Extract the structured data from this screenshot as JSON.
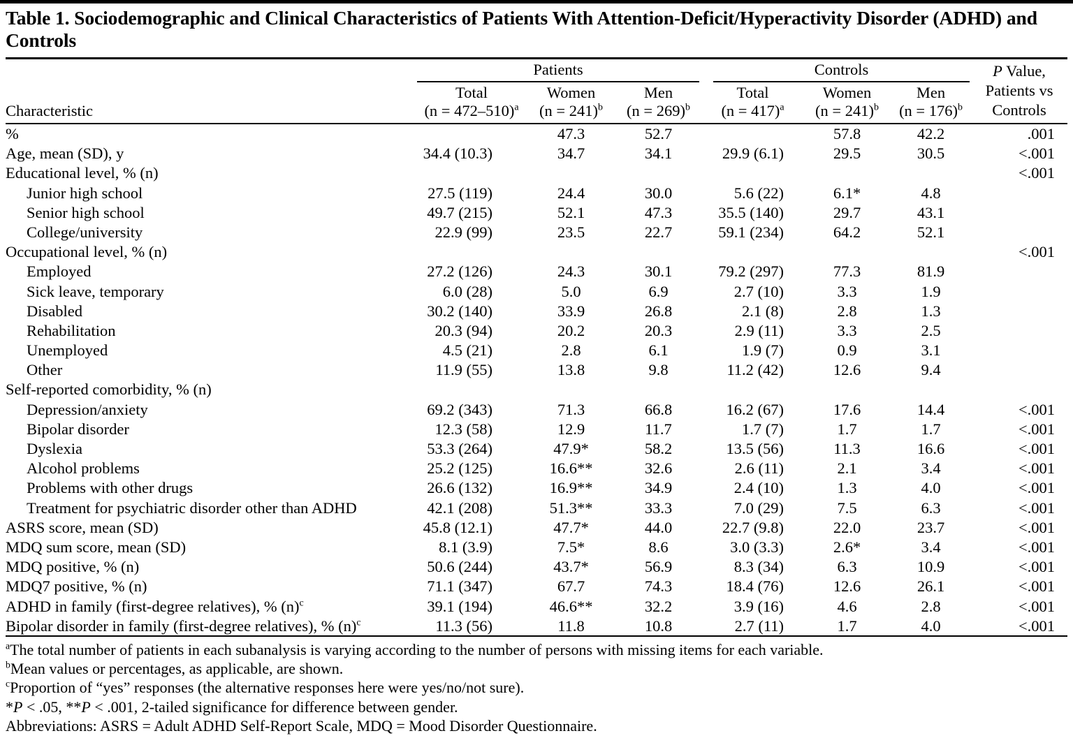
{
  "title": "Table 1. Sociodemographic and Clinical Characteristics of Patients With Attention-Deficit/Hyperactivity Disorder (ADHD) and Controls",
  "table": {
    "characteristic_header": "Characteristic",
    "patients_group": {
      "label": "Patients",
      "columns": [
        {
          "line1": "Total",
          "line2": "(n = 472–510)",
          "sup": "a"
        },
        {
          "line1": "Women",
          "line2": "(n = 241)",
          "sup": "b"
        },
        {
          "line1": "Men",
          "line2": "(n = 269)",
          "sup": "b"
        }
      ]
    },
    "controls_group": {
      "label": "Controls",
      "columns": [
        {
          "line1": "Total",
          "line2": "(n = 417)",
          "sup": "a"
        },
        {
          "line1": "Women",
          "line2": "(n = 241)",
          "sup": "b"
        },
        {
          "line1": "Men",
          "line2": "(n = 176)",
          "sup": "b"
        }
      ]
    },
    "p_header": {
      "italic": "P",
      "line1_rest": " Value,",
      "line2": "Patients vs",
      "line3": "Controls"
    },
    "rows": [
      {
        "label": "%",
        "indent": false,
        "cells": [
          "",
          "47.3",
          "52.7",
          "",
          "57.8",
          "42.2",
          ".001"
        ]
      },
      {
        "label": "Age, mean (SD), y",
        "indent": false,
        "cells": [
          "34.4 (10.3)",
          "34.7",
          "34.1",
          "29.9 (6.1)",
          "29.5",
          "30.5",
          "<.001"
        ]
      },
      {
        "label": "Educational level, % (n)",
        "indent": false,
        "cells": [
          "",
          "",
          "",
          "",
          "",
          "",
          "<.001"
        ]
      },
      {
        "label": "Junior high school",
        "indent": true,
        "cells": [
          "27.5 (119)",
          "24.4",
          "30.0",
          "5.6 (22)",
          "6.1*",
          "4.8",
          ""
        ]
      },
      {
        "label": "Senior high school",
        "indent": true,
        "cells": [
          "49.7 (215)",
          "52.1",
          "47.3",
          "35.5 (140)",
          "29.7",
          "43.1",
          ""
        ]
      },
      {
        "label": "College/university",
        "indent": true,
        "cells": [
          "22.9 (99)",
          "23.5",
          "22.7",
          "59.1 (234)",
          "64.2",
          "52.1",
          ""
        ]
      },
      {
        "label": "Occupational level, % (n)",
        "indent": false,
        "cells": [
          "",
          "",
          "",
          "",
          "",
          "",
          "<.001"
        ]
      },
      {
        "label": "Employed",
        "indent": true,
        "cells": [
          "27.2 (126)",
          "24.3",
          "30.1",
          "79.2 (297)",
          "77.3",
          "81.9",
          ""
        ]
      },
      {
        "label": "Sick leave, temporary",
        "indent": true,
        "cells": [
          "6.0 (28)",
          "5.0",
          "6.9",
          "2.7 (10)",
          "3.3",
          "1.9",
          ""
        ]
      },
      {
        "label": "Disabled",
        "indent": true,
        "cells": [
          "30.2 (140)",
          "33.9",
          "26.8",
          "2.1 (8)",
          "2.8",
          "1.3",
          ""
        ]
      },
      {
        "label": "Rehabilitation",
        "indent": true,
        "cells": [
          "20.3 (94)",
          "20.2",
          "20.3",
          "2.9 (11)",
          "3.3",
          "2.5",
          ""
        ]
      },
      {
        "label": "Unemployed",
        "indent": true,
        "cells": [
          "4.5 (21)",
          "2.8",
          "6.1",
          "1.9 (7)",
          "0.9",
          "3.1",
          ""
        ]
      },
      {
        "label": "Other",
        "indent": true,
        "cells": [
          "11.9 (55)",
          "13.8",
          "9.8",
          "11.2 (42)",
          "12.6",
          "9.4",
          ""
        ]
      },
      {
        "label": "Self-reported comorbidity, % (n)",
        "indent": false,
        "cells": [
          "",
          "",
          "",
          "",
          "",
          "",
          ""
        ]
      },
      {
        "label": "Depression/anxiety",
        "indent": true,
        "cells": [
          "69.2 (343)",
          "71.3",
          "66.8",
          "16.2 (67)",
          "17.6",
          "14.4",
          "<.001"
        ]
      },
      {
        "label": "Bipolar disorder",
        "indent": true,
        "cells": [
          "12.3 (58)",
          "12.9",
          "11.7",
          "1.7 (7)",
          "1.7",
          "1.7",
          "<.001"
        ]
      },
      {
        "label": "Dyslexia",
        "indent": true,
        "cells": [
          "53.3 (264)",
          "47.9*",
          "58.2",
          "13.5 (56)",
          "11.3",
          "16.6",
          "<.001"
        ]
      },
      {
        "label": "Alcohol problems",
        "indent": true,
        "cells": [
          "25.2 (125)",
          "16.6**",
          "32.6",
          "2.6 (11)",
          "2.1",
          "3.4",
          "<.001"
        ]
      },
      {
        "label": "Problems with other drugs",
        "indent": true,
        "cells": [
          "26.6 (132)",
          "16.9**",
          "34.9",
          "2.4 (10)",
          "1.3",
          "4.0",
          "<.001"
        ]
      },
      {
        "label": "Treatment for psychiatric disorder other than ADHD",
        "indent": true,
        "cells": [
          "42.1 (208)",
          "51.3**",
          "33.3",
          "7.0 (29)",
          "7.5",
          "6.3",
          "<.001"
        ]
      },
      {
        "label": "ASRS score, mean (SD)",
        "indent": false,
        "cells": [
          "45.8 (12.1)",
          "47.7*",
          "44.0",
          "22.7 (9.8)",
          "22.0",
          "23.7",
          "<.001"
        ]
      },
      {
        "label": "MDQ sum score, mean (SD)",
        "indent": false,
        "cells": [
          "8.1 (3.9)",
          "7.5*",
          "8.6",
          "3.0 (3.3)",
          "2.6*",
          "3.4",
          "<.001"
        ]
      },
      {
        "label": "MDQ positive, % (n)",
        "indent": false,
        "cells": [
          "50.6 (244)",
          "43.7*",
          "56.9",
          "8.3 (34)",
          "6.3",
          "10.9",
          "<.001"
        ]
      },
      {
        "label": "MDQ7 positive, % (n)",
        "indent": false,
        "cells": [
          "71.1 (347)",
          "67.7",
          "74.3",
          "18.4 (76)",
          "12.6",
          "26.1",
          "<.001"
        ]
      },
      {
        "label": "ADHD in family (first-degree relatives), % (n)",
        "sup": "c",
        "indent": false,
        "cells": [
          "39.1 (194)",
          "46.6**",
          "32.2",
          "3.9 (16)",
          "4.6",
          "2.8",
          "<.001"
        ]
      },
      {
        "label": "Bipolar disorder in family (first-degree relatives), % (n)",
        "sup": "c",
        "indent": false,
        "cells": [
          "11.3 (56)",
          "11.8",
          "10.8",
          "2.7 (11)",
          "1.7",
          "4.0",
          "<.001"
        ]
      }
    ]
  },
  "footnotes": [
    {
      "sup": "a",
      "segments": [
        {
          "t": "The total number of patients in each subanalysis is varying according to the number of persons with missing items for each variable."
        }
      ]
    },
    {
      "sup": "b",
      "segments": [
        {
          "t": "Mean values or percentages, as applicable, are shown."
        }
      ]
    },
    {
      "sup": "c",
      "segments": [
        {
          "t": "Proportion of “yes” responses (the alternative responses here were yes/no/not sure)."
        }
      ]
    },
    {
      "sup": "",
      "segments": [
        {
          "t": "*"
        },
        {
          "t": "P",
          "i": true
        },
        {
          "t": " < .05, **"
        },
        {
          "t": "P",
          "i": true
        },
        {
          "t": " < .001, 2-tailed significance for difference between gender."
        }
      ]
    },
    {
      "sup": "",
      "segments": [
        {
          "t": "Abbreviations: ASRS = Adult ADHD Self-Report Scale, MDQ = Mood Disorder Questionnaire."
        }
      ]
    }
  ]
}
